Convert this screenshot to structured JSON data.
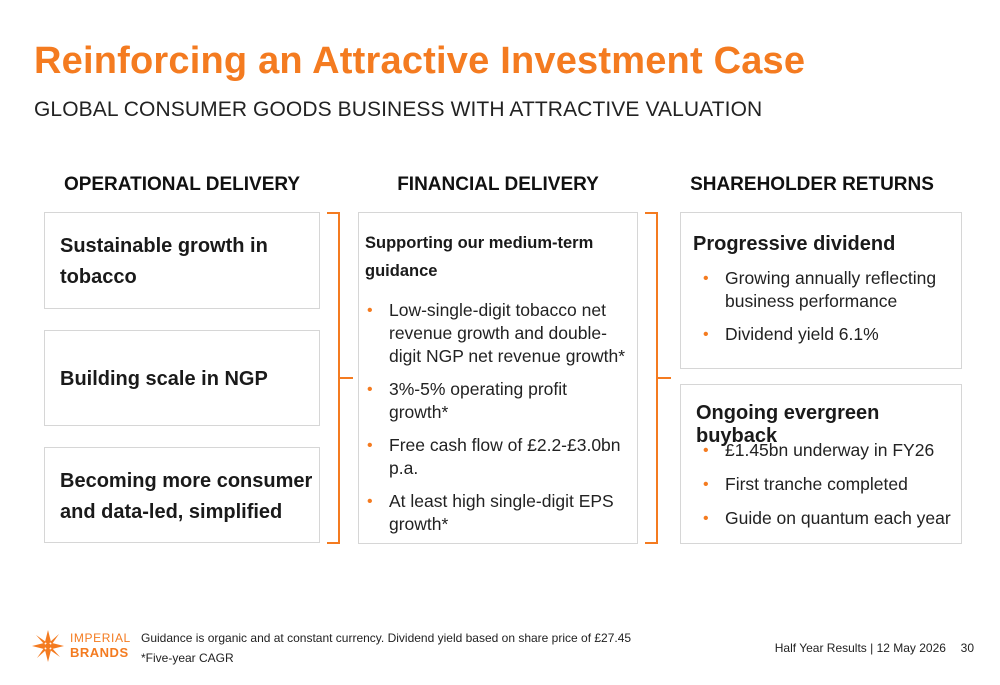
{
  "title": "Reinforcing an Attractive Investment Case",
  "subtitle": "GLOBAL CONSUMER GOODS BUSINESS WITH ATTRACTIVE VALUATION",
  "columns": {
    "operational": {
      "heading": "OPERATIONAL DELIVERY",
      "boxes": [
        {
          "line1": "Sustainable growth in",
          "line2": "tobacco"
        },
        {
          "line1": "Building scale in NGP"
        },
        {
          "line1": "Becoming more consumer",
          "line2": "and data-led, simplified"
        }
      ]
    },
    "financial": {
      "heading": "FINANCIAL DELIVERY",
      "box_title_line1": "Supporting our medium-term",
      "box_title_line2": "guidance",
      "bullets": [
        "Low-single-digit tobacco net revenue growth and double-digit NGP net revenue growth*",
        "3%-5% operating profit growth*",
        "Free cash flow of £2.2-£3.0bn p.a.",
        "At least high single-digit EPS growth*"
      ]
    },
    "shareholder": {
      "heading": "SHAREHOLDER RETURNS",
      "dividend": {
        "title": "Progressive dividend",
        "bullets": [
          "Growing annually reflecting business performance",
          "Dividend yield 6.1%"
        ]
      },
      "buyback": {
        "title": "Ongoing evergreen buyback",
        "bullets": [
          "£1.45bn underway in FY26",
          "First tranche completed",
          "Guide on quantum each year"
        ]
      }
    }
  },
  "footer": {
    "logo_line1": "IMPERIAL",
    "logo_line2": "BRANDS",
    "note1": "Guidance is organic and at constant currency. Dividend yield based on share price of £27.45",
    "note2": "*Five-year CAGR",
    "event": "Half Year Results | 12 May 2026",
    "page_number": "30"
  },
  "colors": {
    "accent": "#f47b20",
    "text": "#1a1a1a",
    "border": "#d6d6d6"
  }
}
